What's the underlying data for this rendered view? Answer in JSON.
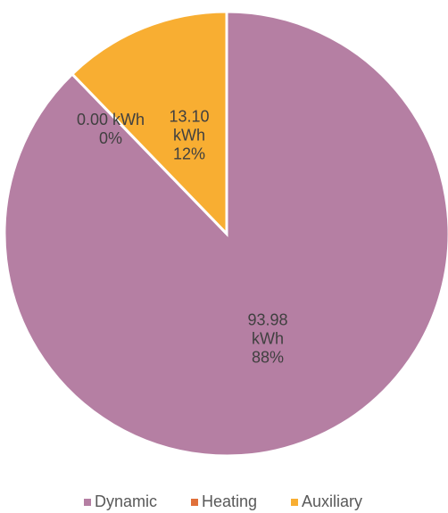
{
  "chart_data": {
    "type": "pie",
    "categories": [
      "Dynamic",
      "Heating",
      "Auxiliary"
    ],
    "values": [
      93.98,
      0.0,
      13.1
    ],
    "value_labels": [
      "93.98 kWh",
      "0.00 kWh",
      "13.10 kWh"
    ],
    "percent_labels": [
      "88%",
      "0%",
      "12%"
    ],
    "colors": [
      "#b57fa3",
      "#e0703a",
      "#f8ae32"
    ],
    "legend": "bottom"
  }
}
